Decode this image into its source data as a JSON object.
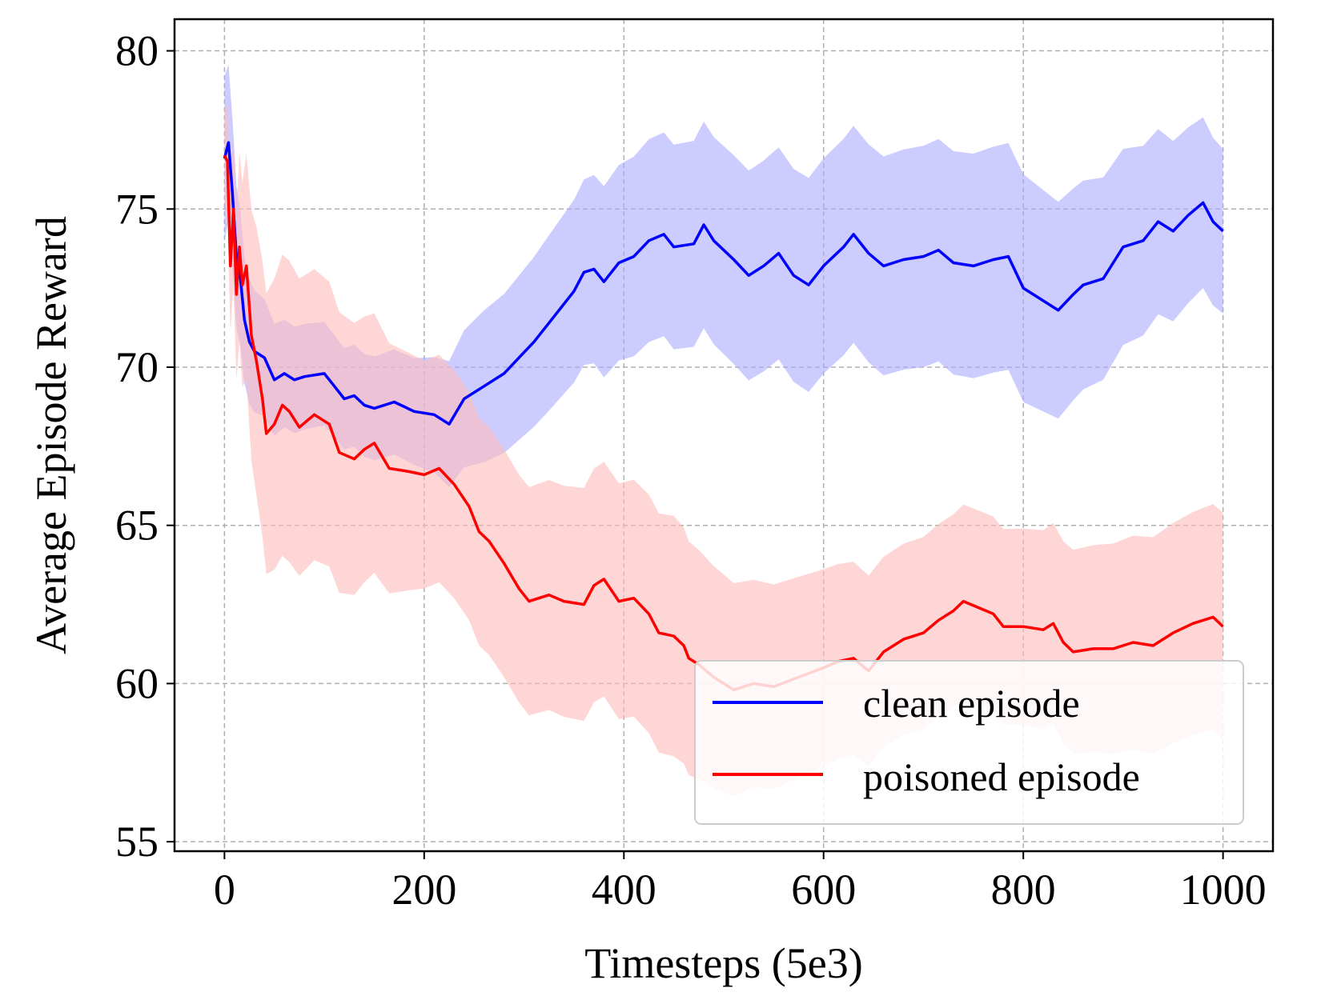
{
  "chart_data": {
    "type": "line",
    "xlabel": "Timesteps (5e3)",
    "ylabel": "Average Episode Reward",
    "xlim": [
      -50,
      1050
    ],
    "ylim": [
      54.7,
      81
    ],
    "xticks": [
      0,
      200,
      400,
      600,
      800,
      1000
    ],
    "yticks": [
      55,
      60,
      65,
      70,
      75,
      80
    ],
    "grid": true,
    "legend_position": "lower right",
    "series": [
      {
        "name": "clean episode",
        "color": "#0000ff",
        "band_color": "#aaaaff",
        "points": [
          [
            0,
            76.6
          ],
          [
            4,
            77.1
          ],
          [
            8,
            75.5
          ],
          [
            12,
            73.5
          ],
          [
            16,
            72.8
          ],
          [
            20,
            71.5
          ],
          [
            25,
            70.8
          ],
          [
            30,
            70.5
          ],
          [
            40,
            70.3
          ],
          [
            50,
            69.6
          ],
          [
            60,
            69.8
          ],
          [
            70,
            69.6
          ],
          [
            80,
            69.7
          ],
          [
            100,
            69.8
          ],
          [
            110,
            69.4
          ],
          [
            120,
            69.0
          ],
          [
            130,
            69.1
          ],
          [
            140,
            68.8
          ],
          [
            150,
            68.7
          ],
          [
            170,
            68.9
          ],
          [
            190,
            68.6
          ],
          [
            210,
            68.5
          ],
          [
            225,
            68.2
          ],
          [
            240,
            69.0
          ],
          [
            260,
            69.4
          ],
          [
            280,
            69.8
          ],
          [
            295,
            70.3
          ],
          [
            310,
            70.8
          ],
          [
            330,
            71.6
          ],
          [
            350,
            72.4
          ],
          [
            360,
            73.0
          ],
          [
            370,
            73.1
          ],
          [
            380,
            72.7
          ],
          [
            395,
            73.3
          ],
          [
            410,
            73.5
          ],
          [
            425,
            74.0
          ],
          [
            440,
            74.2
          ],
          [
            450,
            73.8
          ],
          [
            470,
            73.9
          ],
          [
            480,
            74.5
          ],
          [
            490,
            74.0
          ],
          [
            510,
            73.4
          ],
          [
            525,
            72.9
          ],
          [
            540,
            73.2
          ],
          [
            555,
            73.6
          ],
          [
            570,
            72.9
          ],
          [
            585,
            72.6
          ],
          [
            600,
            73.2
          ],
          [
            620,
            73.8
          ],
          [
            630,
            74.2
          ],
          [
            645,
            73.6
          ],
          [
            660,
            73.2
          ],
          [
            680,
            73.4
          ],
          [
            700,
            73.5
          ],
          [
            715,
            73.7
          ],
          [
            730,
            73.3
          ],
          [
            750,
            73.2
          ],
          [
            770,
            73.4
          ],
          [
            785,
            73.5
          ],
          [
            800,
            72.5
          ],
          [
            815,
            72.2
          ],
          [
            835,
            71.8
          ],
          [
            850,
            72.3
          ],
          [
            860,
            72.6
          ],
          [
            880,
            72.8
          ],
          [
            900,
            73.8
          ],
          [
            920,
            74.0
          ],
          [
            935,
            74.6
          ],
          [
            950,
            74.3
          ],
          [
            965,
            74.8
          ],
          [
            980,
            75.2
          ],
          [
            990,
            74.6
          ],
          [
            1000,
            74.3
          ]
        ],
        "band_width": [
          [
            0,
            2.6
          ],
          [
            20,
            2.0
          ],
          [
            60,
            1.7
          ],
          [
            120,
            1.6
          ],
          [
            200,
            1.7
          ],
          [
            260,
            2.4
          ],
          [
            330,
            2.8
          ],
          [
            420,
            3.2
          ],
          [
            600,
            3.4
          ],
          [
            800,
            3.6
          ],
          [
            1000,
            2.6
          ]
        ]
      },
      {
        "name": "poisoned episode",
        "color": "#ff0000",
        "band_color": "#ffbbbb",
        "points": [
          [
            0,
            76.7
          ],
          [
            3,
            76.5
          ],
          [
            6,
            73.2
          ],
          [
            9,
            75.0
          ],
          [
            12,
            72.3
          ],
          [
            15,
            73.8
          ],
          [
            18,
            72.6
          ],
          [
            22,
            73.2
          ],
          [
            27,
            71.0
          ],
          [
            32,
            70.2
          ],
          [
            38,
            69.0
          ],
          [
            42,
            67.9
          ],
          [
            50,
            68.2
          ],
          [
            58,
            68.8
          ],
          [
            65,
            68.6
          ],
          [
            75,
            68.1
          ],
          [
            90,
            68.5
          ],
          [
            105,
            68.2
          ],
          [
            115,
            67.3
          ],
          [
            130,
            67.1
          ],
          [
            140,
            67.4
          ],
          [
            150,
            67.6
          ],
          [
            165,
            66.8
          ],
          [
            185,
            66.7
          ],
          [
            200,
            66.6
          ],
          [
            215,
            66.8
          ],
          [
            230,
            66.3
          ],
          [
            245,
            65.6
          ],
          [
            255,
            64.8
          ],
          [
            265,
            64.5
          ],
          [
            280,
            63.8
          ],
          [
            295,
            63.0
          ],
          [
            305,
            62.6
          ],
          [
            325,
            62.8
          ],
          [
            340,
            62.6
          ],
          [
            360,
            62.5
          ],
          [
            370,
            63.1
          ],
          [
            380,
            63.3
          ],
          [
            395,
            62.6
          ],
          [
            410,
            62.7
          ],
          [
            425,
            62.2
          ],
          [
            435,
            61.6
          ],
          [
            450,
            61.5
          ],
          [
            460,
            61.2
          ],
          [
            465,
            60.8
          ],
          [
            475,
            60.6
          ],
          [
            490,
            60.2
          ],
          [
            510,
            59.8
          ],
          [
            530,
            60.0
          ],
          [
            550,
            59.9
          ],
          [
            575,
            60.2
          ],
          [
            600,
            60.5
          ],
          [
            615,
            60.7
          ],
          [
            630,
            60.8
          ],
          [
            645,
            60.4
          ],
          [
            660,
            61.0
          ],
          [
            680,
            61.4
          ],
          [
            700,
            61.6
          ],
          [
            715,
            62.0
          ],
          [
            730,
            62.3
          ],
          [
            740,
            62.6
          ],
          [
            755,
            62.4
          ],
          [
            770,
            62.2
          ],
          [
            780,
            61.8
          ],
          [
            800,
            61.8
          ],
          [
            820,
            61.7
          ],
          [
            830,
            61.9
          ],
          [
            840,
            61.3
          ],
          [
            850,
            61.0
          ],
          [
            870,
            61.1
          ],
          [
            890,
            61.1
          ],
          [
            910,
            61.3
          ],
          [
            930,
            61.2
          ],
          [
            950,
            61.6
          ],
          [
            970,
            61.9
          ],
          [
            990,
            62.1
          ],
          [
            1000,
            61.8
          ]
        ],
        "band_width": [
          [
            0,
            1.5
          ],
          [
            15,
            3.0
          ],
          [
            30,
            4.2
          ],
          [
            60,
            4.8
          ],
          [
            120,
            4.4
          ],
          [
            200,
            3.6
          ],
          [
            300,
            3.6
          ],
          [
            450,
            3.8
          ],
          [
            520,
            3.3
          ],
          [
            650,
            3.0
          ],
          [
            800,
            3.1
          ],
          [
            1000,
            3.6
          ]
        ]
      }
    ]
  }
}
